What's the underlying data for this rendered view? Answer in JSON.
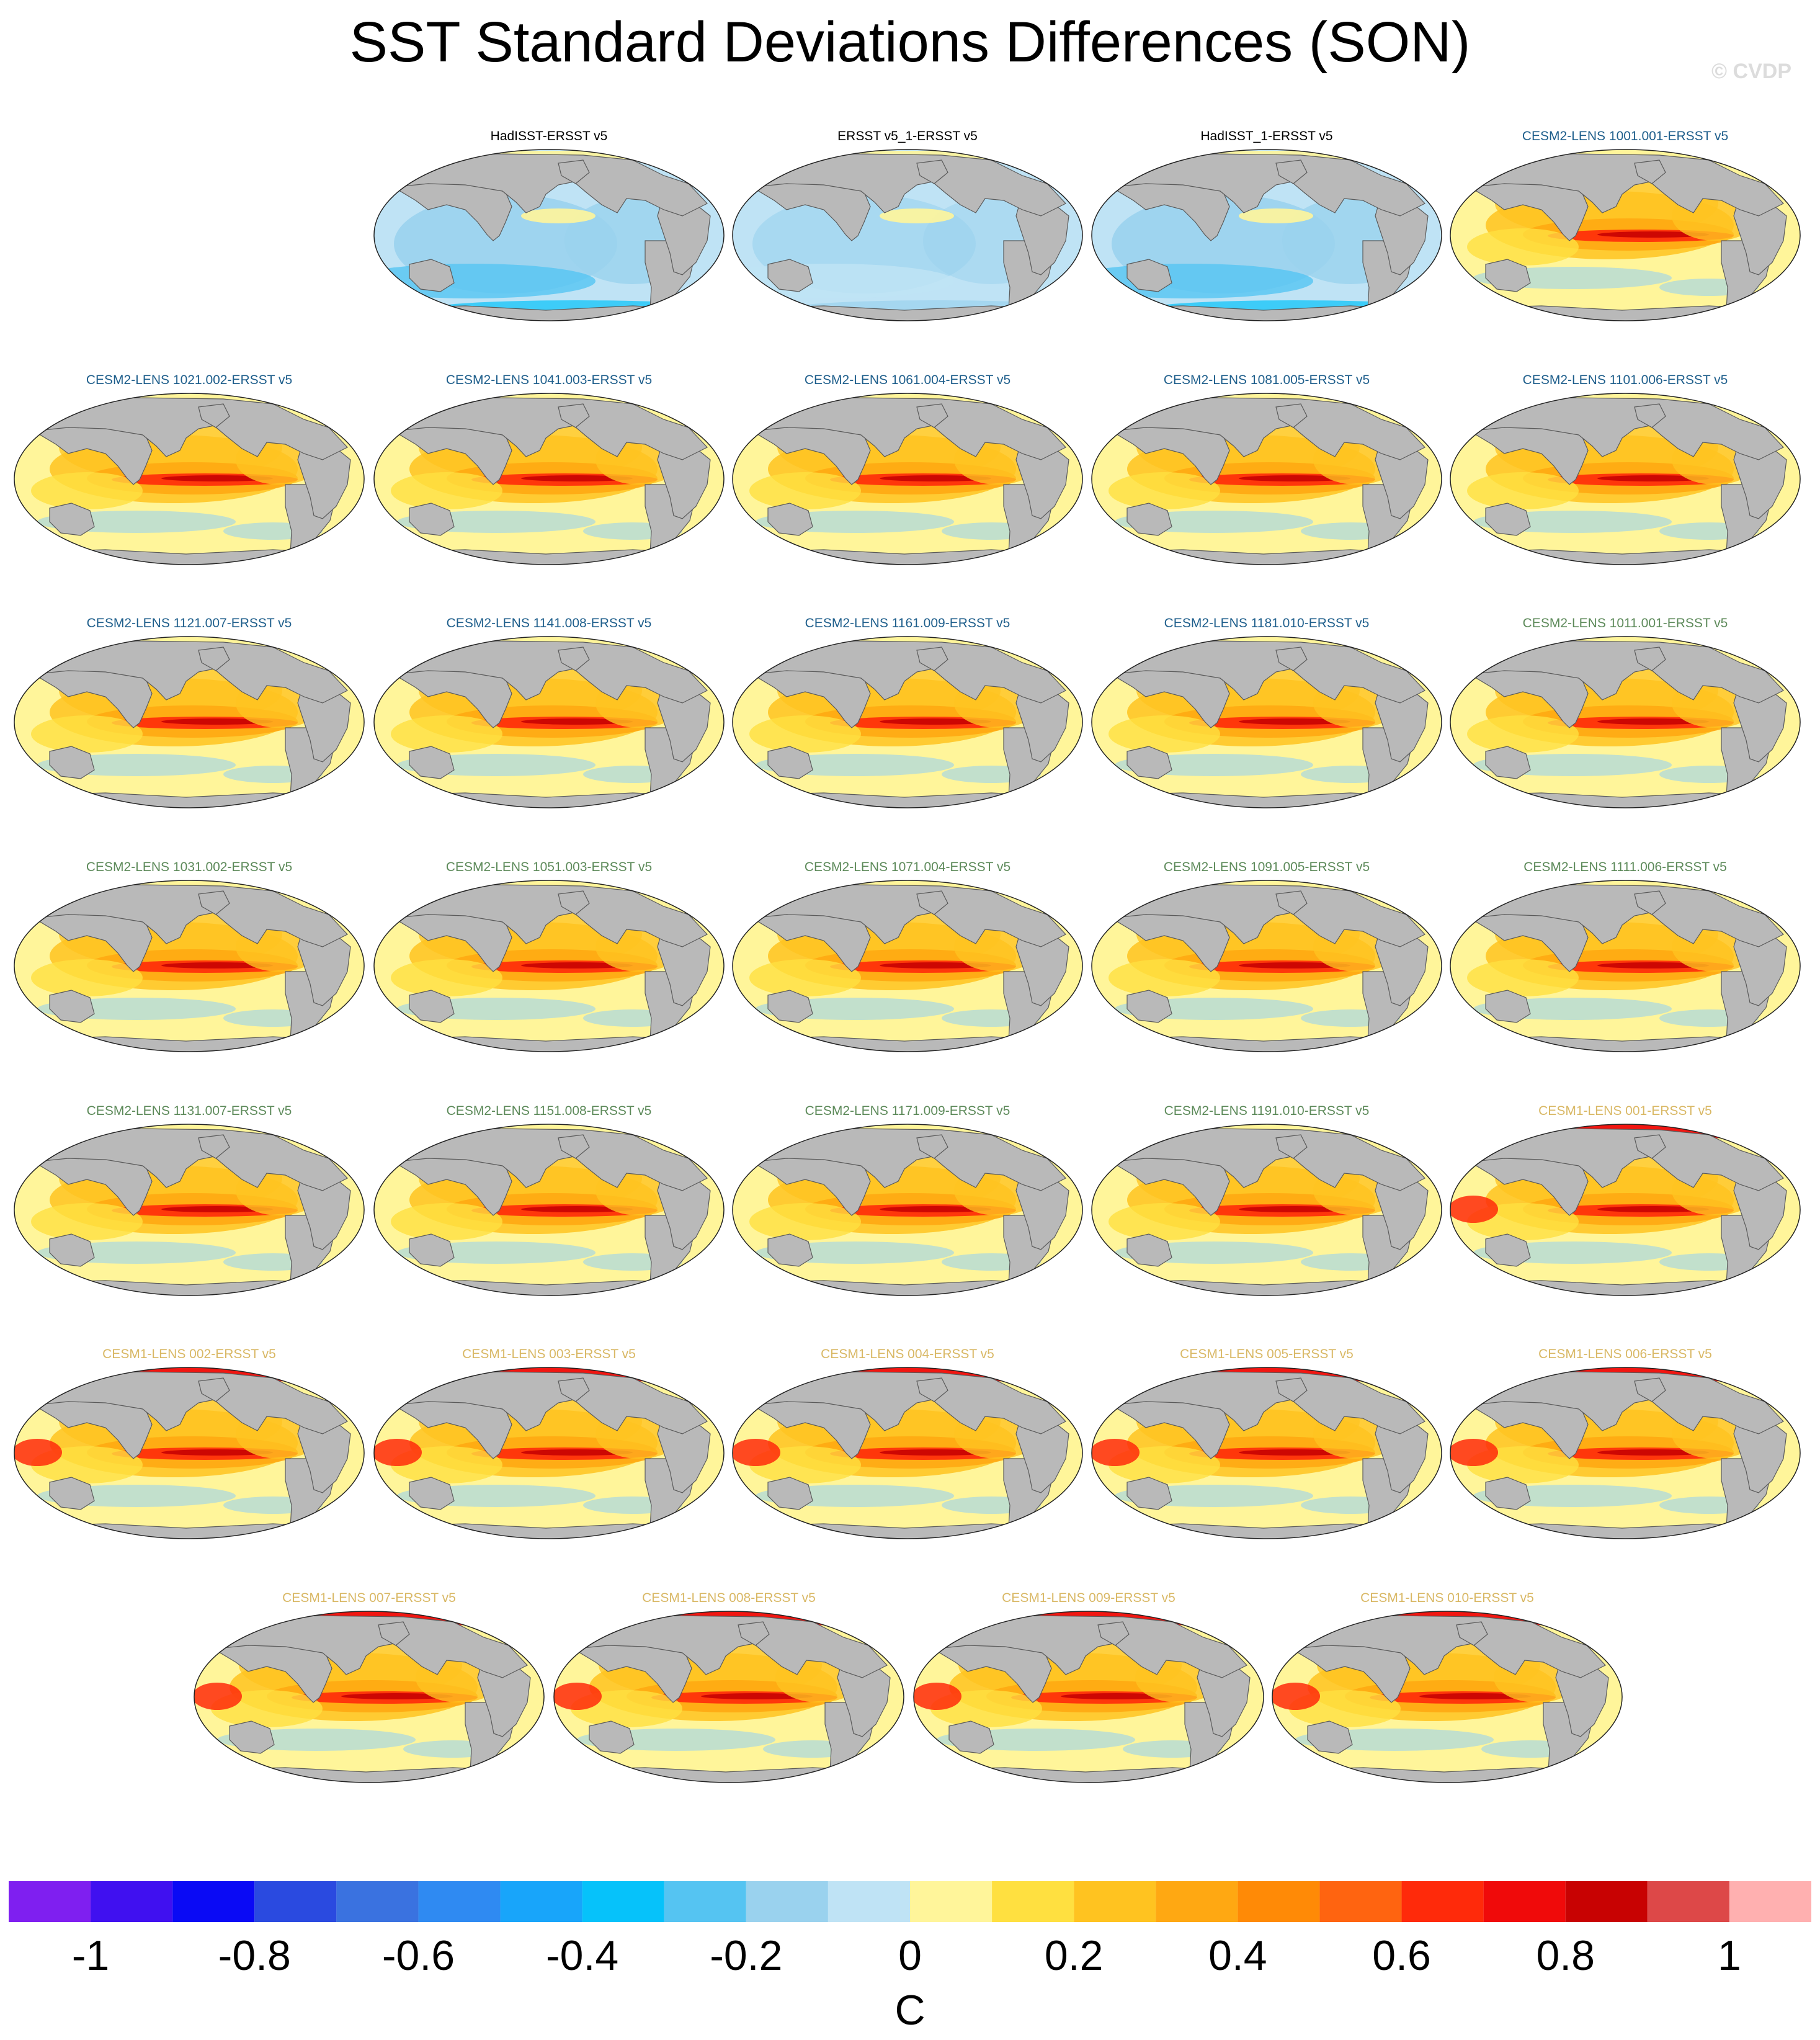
{
  "title": "SST Standard Deviations Differences (SON)",
  "credit": "© CVDP",
  "colors": {
    "land": "#b9b9b9",
    "ocean_base": "#fff39a",
    "title_obs": "#000000",
    "title_cesm2_a": "#1f5f8c",
    "title_cesm2_b": "#5d8a5a",
    "title_cesm1": "#d9b865"
  },
  "panels": [
    {
      "title": "HadISST-ERSST v5",
      "group": "obs",
      "pattern": "cool"
    },
    {
      "title": "ERSST v5_1-ERSST v5",
      "group": "obs",
      "pattern": "cool_light"
    },
    {
      "title": "HadISST_1-ERSST v5",
      "group": "obs",
      "pattern": "cool"
    },
    {
      "title": "CESM2-LENS 1001.001-ERSST v5",
      "group": "cesm2_a",
      "pattern": "warm"
    },
    {
      "title": "CESM2-LENS 1021.002-ERSST v5",
      "group": "cesm2_a",
      "pattern": "warm"
    },
    {
      "title": "CESM2-LENS 1041.003-ERSST v5",
      "group": "cesm2_a",
      "pattern": "warm"
    },
    {
      "title": "CESM2-LENS 1061.004-ERSST v5",
      "group": "cesm2_a",
      "pattern": "warm"
    },
    {
      "title": "CESM2-LENS 1081.005-ERSST v5",
      "group": "cesm2_a",
      "pattern": "warm"
    },
    {
      "title": "CESM2-LENS 1101.006-ERSST v5",
      "group": "cesm2_a",
      "pattern": "warm"
    },
    {
      "title": "CESM2-LENS 1121.007-ERSST v5",
      "group": "cesm2_a",
      "pattern": "warm"
    },
    {
      "title": "CESM2-LENS 1141.008-ERSST v5",
      "group": "cesm2_a",
      "pattern": "warm"
    },
    {
      "title": "CESM2-LENS 1161.009-ERSST v5",
      "group": "cesm2_a",
      "pattern": "warm"
    },
    {
      "title": "CESM2-LENS 1181.010-ERSST v5",
      "group": "cesm2_a",
      "pattern": "warm"
    },
    {
      "title": "CESM2-LENS 1011.001-ERSST v5",
      "group": "cesm2_b",
      "pattern": "warm"
    },
    {
      "title": "CESM2-LENS 1031.002-ERSST v5",
      "group": "cesm2_b",
      "pattern": "warm"
    },
    {
      "title": "CESM2-LENS 1051.003-ERSST v5",
      "group": "cesm2_b",
      "pattern": "warm"
    },
    {
      "title": "CESM2-LENS 1071.004-ERSST v5",
      "group": "cesm2_b",
      "pattern": "warm"
    },
    {
      "title": "CESM2-LENS 1091.005-ERSST v5",
      "group": "cesm2_b",
      "pattern": "warm"
    },
    {
      "title": "CESM2-LENS 1111.006-ERSST v5",
      "group": "cesm2_b",
      "pattern": "warm"
    },
    {
      "title": "CESM2-LENS 1131.007-ERSST v5",
      "group": "cesm2_b",
      "pattern": "warm"
    },
    {
      "title": "CESM2-LENS 1151.008-ERSST v5",
      "group": "cesm2_b",
      "pattern": "warm"
    },
    {
      "title": "CESM2-LENS 1171.009-ERSST v5",
      "group": "cesm2_b",
      "pattern": "warm"
    },
    {
      "title": "CESM2-LENS 1191.010-ERSST v5",
      "group": "cesm2_b",
      "pattern": "warm"
    },
    {
      "title": "CESM1-LENS 001-ERSST v5",
      "group": "cesm1",
      "pattern": "warm_arctic"
    },
    {
      "title": "CESM1-LENS 002-ERSST v5",
      "group": "cesm1",
      "pattern": "warm_arctic"
    },
    {
      "title": "CESM1-LENS 003-ERSST v5",
      "group": "cesm1",
      "pattern": "warm_arctic"
    },
    {
      "title": "CESM1-LENS 004-ERSST v5",
      "group": "cesm1",
      "pattern": "warm_arctic"
    },
    {
      "title": "CESM1-LENS 005-ERSST v5",
      "group": "cesm1",
      "pattern": "warm_arctic"
    },
    {
      "title": "CESM1-LENS 006-ERSST v5",
      "group": "cesm1",
      "pattern": "warm_arctic"
    },
    {
      "title": "CESM1-LENS 007-ERSST v5",
      "group": "cesm1",
      "pattern": "warm_arctic"
    },
    {
      "title": "CESM1-LENS 008-ERSST v5",
      "group": "cesm1",
      "pattern": "warm_arctic"
    },
    {
      "title": "CESM1-LENS 009-ERSST v5",
      "group": "cesm1",
      "pattern": "warm_arctic"
    },
    {
      "title": "CESM1-LENS 010-ERSST v5",
      "group": "cesm1",
      "pattern": "warm_arctic"
    }
  ],
  "colorbar": {
    "colors": [
      "#7f1ff0",
      "#4010f0",
      "#0a0af5",
      "#2a4ae0",
      "#3a72e0",
      "#2f8af2",
      "#18a5fa",
      "#06c2fa",
      "#55c4f2",
      "#9ad2ee",
      "#bfe3f5",
      "#fff59a",
      "#ffe040",
      "#ffc320",
      "#ffa812",
      "#ff8a06",
      "#ff6410",
      "#ff2a0a",
      "#f00a0a",
      "#c80202",
      "#dd4848",
      "#ffb0b0"
    ],
    "tick_labels": [
      "-1",
      "-0.8",
      "-0.6",
      "-0.4",
      "-0.2",
      "0",
      "0.2",
      "0.4",
      "0.6",
      "0.8",
      "1"
    ],
    "units": "C"
  }
}
